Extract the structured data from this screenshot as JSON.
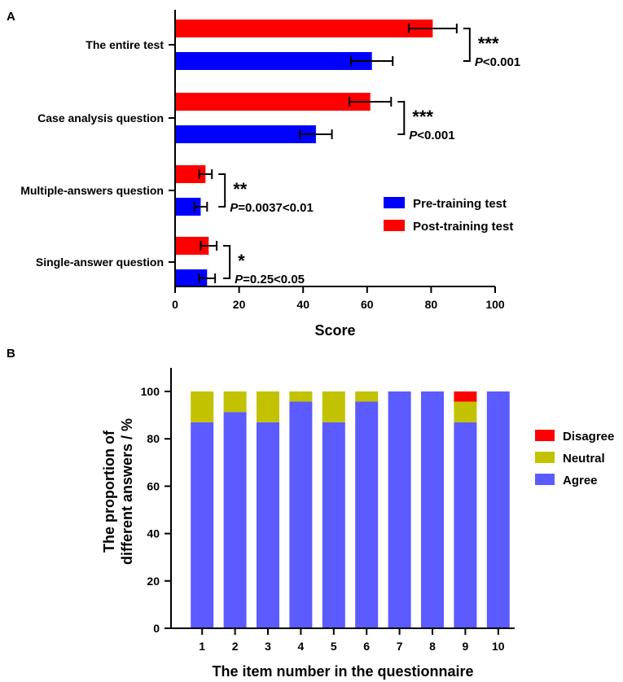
{
  "chart_data": [
    {
      "panel": "A",
      "type": "bar",
      "orientation": "horizontal",
      "xlabel": "Score",
      "xlim": [
        0,
        100
      ],
      "xticks": [
        0,
        20,
        40,
        60,
        80,
        100
      ],
      "categories": [
        "The entire test",
        "Case analysis question",
        "Multiple-answers question",
        "Single-answer question"
      ],
      "series": [
        {
          "name": "Post-training test",
          "color": "#ff0000",
          "values": [
            80.5,
            61,
            9.5,
            10.5
          ],
          "errors": [
            7.5,
            6.5,
            2,
            2.5
          ]
        },
        {
          "name": "Pre-training test",
          "color": "#0000ff",
          "values": [
            61.5,
            44,
            8,
            10
          ],
          "errors": [
            6.5,
            5,
            2,
            2.5
          ]
        }
      ],
      "legend": [
        "Pre-training test",
        "Post-training test"
      ],
      "annotations": [
        {
          "stars": "***",
          "p_italic": "P",
          "p_rest": "<0.001"
        },
        {
          "stars": "***",
          "p_italic": "P",
          "p_rest": "<0.001"
        },
        {
          "stars": "**",
          "p_italic": "P",
          "p_rest": "=0.0037<0.01"
        },
        {
          "stars": "*",
          "p_italic": "P",
          "p_rest": "=0.25<0.05"
        }
      ]
    },
    {
      "panel": "B",
      "type": "bar",
      "stacked": true,
      "xlabel": "The item number in the questionnaire",
      "ylabel_lines": [
        "The proportion of",
        "different answers / %"
      ],
      "ylim": [
        0,
        100
      ],
      "yticks": [
        0,
        20,
        40,
        60,
        80,
        100
      ],
      "categories": [
        "1",
        "2",
        "3",
        "4",
        "5",
        "6",
        "7",
        "8",
        "9",
        "10"
      ],
      "series": [
        {
          "name": "Agree",
          "color": "#5b5bff",
          "values": [
            87,
            91.3,
            87,
            95.7,
            87,
            95.7,
            100,
            100,
            87,
            100
          ]
        },
        {
          "name": "Neutral",
          "color": "#c2c200",
          "values": [
            13,
            8.7,
            13,
            4.3,
            13,
            4.3,
            0,
            0,
            8.7,
            0
          ]
        },
        {
          "name": "Disagree",
          "color": "#ff0000",
          "values": [
            0,
            0,
            0,
            0,
            0,
            0,
            0,
            0,
            4.3,
            0
          ]
        }
      ],
      "legend": [
        "Disagree",
        "Neutral",
        "Agree"
      ]
    }
  ]
}
